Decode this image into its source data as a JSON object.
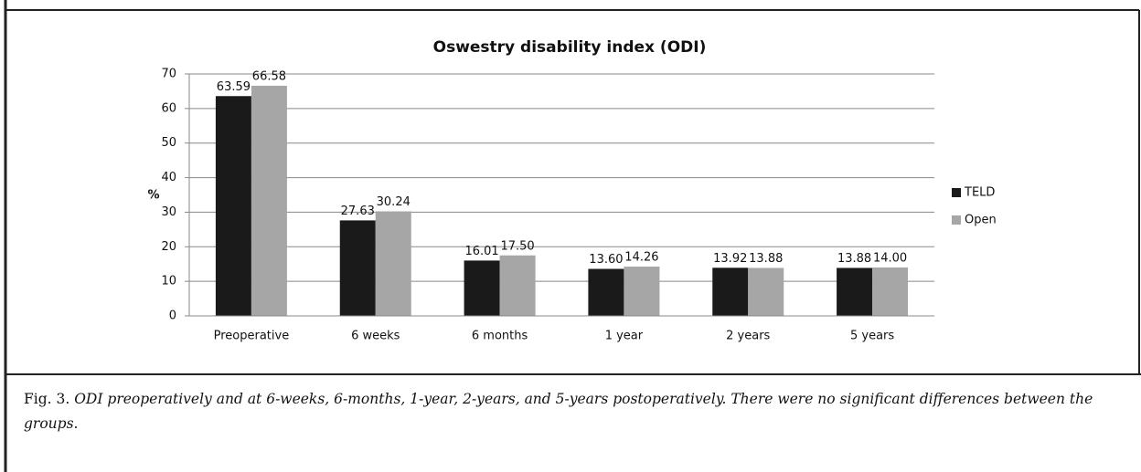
{
  "chart_data": {
    "type": "bar",
    "title": "Oswestry disability index (ODI)",
    "y_label": "%",
    "categories": [
      "Preoperative",
      "6 weeks",
      "6 months",
      "1 year",
      "2 years",
      "5 years"
    ],
    "series": [
      {
        "name": "TELD",
        "color": "#1a1a1a",
        "values": [
          63.59,
          27.63,
          16.01,
          13.6,
          13.92,
          13.88
        ],
        "value_labels": [
          "63.59",
          "27.63",
          "16.01",
          "13.60",
          "13.92",
          "13.88"
        ]
      },
      {
        "name": "Open",
        "color": "#a6a6a6",
        "values": [
          66.58,
          30.24,
          17.5,
          14.26,
          13.88,
          14
        ],
        "value_labels": [
          "66.58",
          "30.24",
          "17.50",
          "14.26",
          "13.88",
          "14.00"
        ]
      }
    ],
    "ylim": [
      0,
      70
    ],
    "yticks": [
      0,
      10,
      20,
      30,
      40,
      50,
      60,
      70
    ],
    "grid": true,
    "legend": "right"
  },
  "caption": {
    "label": "Fig. 3.",
    "text": "ODI preoperatively and at 6-weeks, 6-months, 1-year, 2-years, and 5-years postoperatively. There were no significant differences between the groups."
  }
}
